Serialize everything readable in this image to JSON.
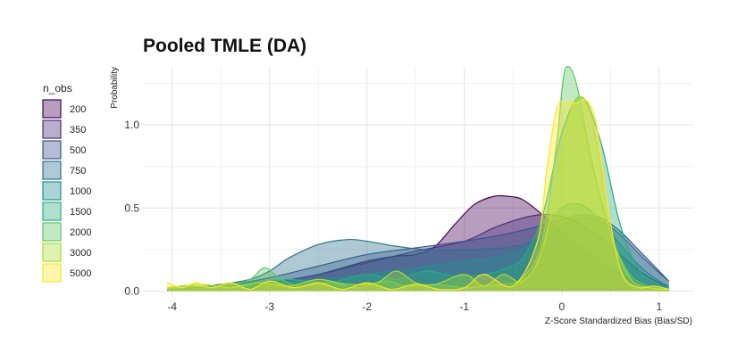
{
  "chart_data": {
    "type": "area",
    "title": "Pooled TMLE (DA)",
    "xlabel": "Z-Score Standardized Bias (Bias/SD)",
    "ylabel": "Probability",
    "xlim": [
      -4.3,
      1.35
    ],
    "ylim": [
      -0.03,
      1.35
    ],
    "x_ticks": [
      -4,
      -3,
      -2,
      -1,
      0,
      1
    ],
    "x_tick_labels": [
      "-4",
      "-3",
      "-2",
      "-1",
      "0",
      "1"
    ],
    "y_ticks": [
      0.0,
      0.5,
      1.0
    ],
    "y_tick_labels": [
      "0.0",
      "0.5",
      "1.0"
    ],
    "grid": true,
    "legend": {
      "title": "n_obs",
      "position": "left"
    },
    "series": [
      {
        "name": "200",
        "color": "#440154",
        "x": [
          -4.05,
          -3.5,
          -3.0,
          -2.5,
          -2.0,
          -1.7,
          -1.5,
          -1.3,
          -1.1,
          -0.9,
          -0.7,
          -0.55,
          -0.4,
          -0.2,
          0.0,
          0.2,
          0.4,
          0.6,
          0.8,
          1.0,
          1.1
        ],
        "y": [
          0.01,
          0.02,
          0.05,
          0.1,
          0.18,
          0.21,
          0.22,
          0.27,
          0.4,
          0.52,
          0.57,
          0.57,
          0.55,
          0.46,
          0.35,
          0.26,
          0.18,
          0.1,
          0.05,
          0.02,
          0.01
        ]
      },
      {
        "name": "350",
        "color": "#472d7b",
        "x": [
          -4.05,
          -3.5,
          -3.0,
          -2.5,
          -2.0,
          -1.5,
          -1.0,
          -0.7,
          -0.4,
          -0.2,
          0.0,
          0.2,
          0.4,
          0.6,
          0.8,
          1.0,
          1.1
        ],
        "y": [
          0.01,
          0.02,
          0.05,
          0.1,
          0.17,
          0.24,
          0.3,
          0.38,
          0.44,
          0.46,
          0.45,
          0.4,
          0.32,
          0.22,
          0.12,
          0.05,
          0.02
        ]
      },
      {
        "name": "500",
        "color": "#3b528b",
        "x": [
          -4.05,
          -3.5,
          -3.0,
          -2.5,
          -2.0,
          -1.5,
          -1.0,
          -0.6,
          -0.3,
          0.0,
          0.2,
          0.4,
          0.6,
          0.8,
          1.0,
          1.1
        ],
        "y": [
          0.01,
          0.03,
          0.08,
          0.15,
          0.22,
          0.26,
          0.3,
          0.34,
          0.38,
          0.43,
          0.46,
          0.44,
          0.36,
          0.24,
          0.12,
          0.06
        ]
      },
      {
        "name": "750",
        "color": "#2c728e",
        "x": [
          -4.05,
          -3.8,
          -3.5,
          -3.2,
          -3.0,
          -2.8,
          -2.5,
          -2.2,
          -2.0,
          -1.7,
          -1.4,
          -1.0,
          -0.6,
          -0.3,
          0.0,
          0.2,
          0.4,
          0.6,
          0.8,
          1.0,
          1.1
        ],
        "y": [
          0.01,
          0.02,
          0.04,
          0.07,
          0.12,
          0.2,
          0.28,
          0.31,
          0.3,
          0.27,
          0.25,
          0.25,
          0.26,
          0.3,
          0.4,
          0.44,
          0.42,
          0.34,
          0.22,
          0.11,
          0.06
        ]
      },
      {
        "name": "1000",
        "color": "#21908d",
        "x": [
          -4.05,
          -3.5,
          -3.0,
          -2.5,
          -2.0,
          -1.5,
          -1.0,
          -0.7,
          -0.4,
          -0.2,
          0.0,
          0.2,
          0.4,
          0.6,
          0.8,
          1.0,
          1.1
        ],
        "y": [
          0.01,
          0.02,
          0.04,
          0.07,
          0.1,
          0.14,
          0.18,
          0.2,
          0.25,
          0.34,
          0.5,
          0.52,
          0.42,
          0.28,
          0.15,
          0.06,
          0.03
        ]
      },
      {
        "name": "1500",
        "color": "#27ad81",
        "x": [
          -4.05,
          -3.6,
          -3.2,
          -2.8,
          -2.4,
          -2.0,
          -1.7,
          -1.4,
          -1.1,
          -0.8,
          -0.6,
          -0.4,
          -0.2,
          0.0,
          0.2,
          0.4,
          0.6,
          0.8,
          1.0,
          1.1
        ],
        "y": [
          0.02,
          0.03,
          0.05,
          0.07,
          0.05,
          0.1,
          0.07,
          0.12,
          0.09,
          0.1,
          0.13,
          0.2,
          0.45,
          0.95,
          1.17,
          0.9,
          0.4,
          0.12,
          0.04,
          0.02
        ]
      },
      {
        "name": "2000",
        "color": "#5dc863",
        "x": [
          -4.05,
          -3.8,
          -3.6,
          -3.4,
          -3.2,
          -3.05,
          -2.9,
          -2.7,
          -2.4,
          -2.1,
          -1.8,
          -1.6,
          -1.3,
          -1.0,
          -0.8,
          -0.6,
          -0.4,
          -0.2,
          -0.05,
          0.0,
          0.05,
          0.15,
          0.3,
          0.5,
          0.7,
          0.9,
          1.1
        ],
        "y": [
          0.02,
          0.03,
          0.02,
          0.04,
          0.07,
          0.14,
          0.08,
          0.03,
          0.05,
          0.02,
          0.06,
          0.03,
          0.04,
          0.02,
          0.03,
          0.04,
          0.08,
          0.3,
          0.9,
          1.2,
          1.35,
          1.25,
          0.8,
          0.35,
          0.1,
          0.03,
          0.01
        ]
      },
      {
        "name": "3000",
        "color": "#aadc32",
        "x": [
          -4.05,
          -3.7,
          -3.4,
          -3.1,
          -2.8,
          -2.5,
          -2.2,
          -1.9,
          -1.7,
          -1.5,
          -1.3,
          -1.0,
          -0.8,
          -0.6,
          -0.4,
          -0.2,
          0.0,
          0.1,
          0.2,
          0.3,
          0.4,
          0.5,
          0.7,
          0.9,
          1.1
        ],
        "y": [
          0.02,
          0.04,
          0.02,
          0.05,
          0.03,
          0.07,
          0.04,
          0.05,
          0.12,
          0.05,
          0.04,
          0.1,
          0.03,
          0.1,
          0.06,
          0.25,
          0.8,
          1.1,
          1.17,
          1.05,
          0.75,
          0.35,
          0.08,
          0.02,
          0.01
        ]
      },
      {
        "name": "5000",
        "color": "#fde725",
        "x": [
          -4.05,
          -3.9,
          -3.75,
          -3.6,
          -3.4,
          -3.2,
          -3.0,
          -2.75,
          -2.5,
          -2.25,
          -2.0,
          -1.75,
          -1.5,
          -1.25,
          -1.0,
          -0.8,
          -0.5,
          -0.25,
          -0.15,
          -0.05,
          0.05,
          0.15,
          0.25,
          0.35,
          0.45,
          0.55,
          0.65,
          0.8,
          0.95,
          1.1
        ],
        "y": [
          0.05,
          0.02,
          0.05,
          0.02,
          0.05,
          0.01,
          0.06,
          0.02,
          0.05,
          0.01,
          0.05,
          0.01,
          0.04,
          0.01,
          0.02,
          0.1,
          0.03,
          0.3,
          0.75,
          1.1,
          1.14,
          1.13,
          1.15,
          1.02,
          0.6,
          0.25,
          0.07,
          0.02,
          0.03,
          0.01
        ]
      }
    ]
  }
}
